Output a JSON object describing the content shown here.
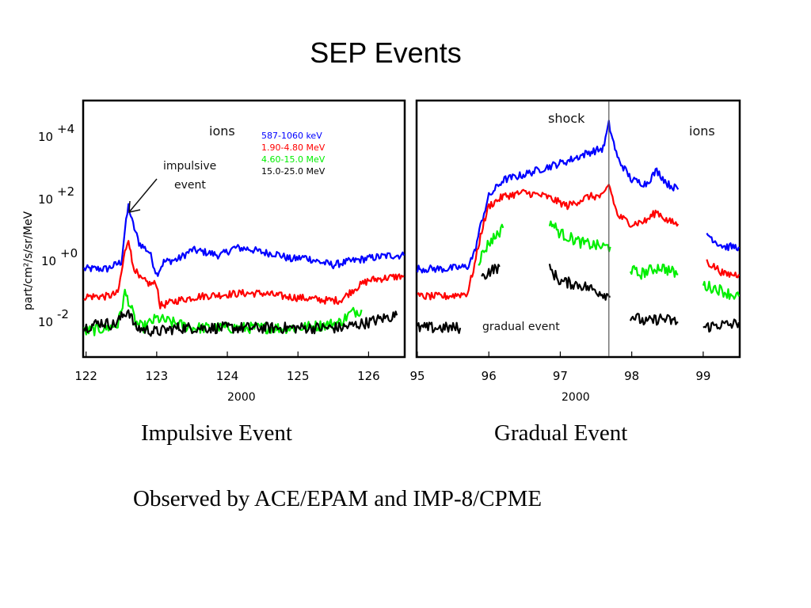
{
  "slide": {
    "title": "SEP Events",
    "caption_left": "Impulsive Event",
    "caption_right": "Gradual Event",
    "observed_by": "Observed by ACE/EPAM and IMP-8/CPME"
  },
  "chart_data": [
    {
      "type": "line",
      "title": "",
      "xlabel": "2000",
      "ylabel": "part/cm²/s/sr/MeV",
      "yscale": "log",
      "x_ticks": [
        "122",
        "123",
        "124",
        "125",
        "126"
      ],
      "y_ticks": [
        "10+4",
        "10+2",
        "100",
        "10-2"
      ],
      "xlim": [
        121.97,
        126.5
      ],
      "ylim_log10": [
        -3.3,
        4.8
      ],
      "annotation_ions": "ions",
      "annotation_event": [
        "impulsive",
        "event"
      ],
      "series": [
        {
          "name": "587-1060 keV",
          "color": "#0000ff",
          "x": [
            121.97,
            122.3,
            122.5,
            122.55,
            122.6,
            122.65,
            122.75,
            122.9,
            123.0,
            123.1,
            123.3,
            123.5,
            123.7,
            123.9,
            124.1,
            124.3,
            124.5,
            124.7,
            124.9,
            125.1,
            125.3,
            125.5,
            125.7,
            125.9,
            126.1,
            126.3,
            126.5
          ],
          "y": [
            0.3,
            0.3,
            0.5,
            5,
            30,
            10,
            2,
            1,
            0.2,
            0.5,
            0.6,
            1.2,
            1.0,
            0.8,
            1.4,
            1.3,
            1.0,
            0.9,
            0.6,
            0.7,
            0.5,
            0.4,
            0.5,
            0.6,
            0.7,
            0.8,
            0.8
          ]
        },
        {
          "name": "1.90-4.80 MeV",
          "color": "#ff0000",
          "x": [
            121.97,
            122.3,
            122.45,
            122.55,
            122.6,
            122.65,
            122.75,
            122.9,
            123.0,
            123.05,
            123.3,
            123.6,
            123.9,
            124.2,
            124.5,
            124.8,
            125.1,
            125.4,
            125.6,
            125.8,
            126.0,
            126.2,
            126.5
          ],
          "y": [
            0.04,
            0.04,
            0.05,
            1.0,
            3,
            0.5,
            0.15,
            0.1,
            0.1,
            0.02,
            0.03,
            0.04,
            0.045,
            0.05,
            0.05,
            0.04,
            0.035,
            0.03,
            0.03,
            0.07,
            0.13,
            0.15,
            0.18
          ]
        },
        {
          "name": "4.60-15.0 MeV",
          "color": "#00ee00",
          "x": [
            121.97,
            122.3,
            122.45,
            122.55,
            122.6,
            122.7,
            122.8,
            123.0,
            123.5,
            124.0,
            124.5,
            125.0,
            125.4,
            125.6,
            125.75,
            125.9
          ],
          "y": [
            0.003,
            0.004,
            0.005,
            0.05,
            0.03,
            0.006,
            0.004,
            0.008,
            0.004,
            0.004,
            0.004,
            0.004,
            0.005,
            0.006,
            0.012,
            0.015
          ]
        },
        {
          "name": "15.0-25.0 MeV",
          "color": "#000000",
          "x": [
            121.97,
            122.2,
            122.4,
            122.6,
            122.7,
            123.0,
            123.3,
            123.6,
            124.0,
            124.4,
            124.8,
            125.2,
            125.6,
            126.0,
            126.2,
            126.4
          ],
          "y": [
            0.004,
            0.006,
            0.005,
            0.015,
            0.004,
            0.003,
            0.004,
            0.004,
            0.004,
            0.004,
            0.004,
            0.004,
            0.004,
            0.006,
            0.008,
            0.01
          ]
        }
      ]
    },
    {
      "type": "line",
      "title": "",
      "xlabel": "2000",
      "ylabel": "",
      "yscale": "log",
      "x_ticks": [
        "95",
        "96",
        "97",
        "98",
        "99"
      ],
      "y_ticks": [],
      "xlim": [
        95.0,
        99.5
      ],
      "ylim_log10": [
        -3.3,
        4.8
      ],
      "annotation_ions": "ions",
      "annotation_shock": "shock",
      "annotation_gradual": "gradual event",
      "shock_x": 97.68,
      "series": [
        {
          "name": "587-1060 keV",
          "color": "#0000ff",
          "x": [
            95.0,
            95.4,
            95.7,
            95.8,
            95.9,
            96.0,
            96.2,
            96.5,
            96.8,
            97.1,
            97.4,
            97.6,
            97.68,
            97.8,
            98.0,
            98.2,
            98.35,
            98.5,
            98.65,
            null,
            99.05,
            99.2,
            99.3,
            99.5
          ],
          "y": [
            0.3,
            0.3,
            0.35,
            1.0,
            10,
            60,
            200,
            300,
            500,
            800,
            1500,
            2000,
            12000,
            1000,
            200,
            150,
            400,
            150,
            100,
            null,
            4,
            2,
            1.5,
            1.5
          ]
        },
        {
          "name": "1.90-4.80 MeV",
          "color": "#ff0000",
          "x": [
            95.0,
            95.4,
            95.7,
            95.8,
            95.9,
            96.0,
            96.2,
            96.5,
            96.8,
            97.1,
            97.4,
            97.6,
            97.68,
            97.8,
            98.0,
            98.2,
            98.35,
            98.5,
            98.65,
            null,
            99.05,
            99.2,
            99.3,
            99.5
          ],
          "y": [
            0.04,
            0.04,
            0.05,
            0.4,
            5,
            30,
            60,
            80,
            60,
            30,
            60,
            60,
            150,
            15,
            8,
            10,
            20,
            10,
            8,
            null,
            0.5,
            0.3,
            0.2,
            0.2
          ]
        },
        {
          "name": "4.60-15.0 MeV",
          "color": "#00ee00",
          "x": [
            95.85,
            96.0,
            96.2,
            null,
            96.85,
            97.0,
            97.3,
            97.6,
            97.7,
            null,
            97.98,
            98.1,
            98.4,
            98.65,
            null,
            99.0,
            99.2,
            99.35,
            99.5
          ],
          "y": [
            0.5,
            2,
            6,
            null,
            10,
            4,
            2,
            1.5,
            1.5,
            null,
            0.3,
            0.2,
            0.35,
            0.2,
            null,
            0.09,
            0.07,
            0.05,
            0.04
          ]
        },
        {
          "name": "15.0-25.0 MeV",
          "color": "#000000",
          "x": [
            95.0,
            95.4,
            95.6,
            null,
            95.9,
            96.0,
            96.15,
            null,
            96.85,
            97.0,
            97.3,
            97.6,
            97.7,
            null,
            97.98,
            98.2,
            98.4,
            98.65,
            null,
            99.0,
            99.2,
            99.4,
            99.5
          ],
          "y": [
            0.004,
            0.004,
            0.004,
            null,
            0.15,
            0.25,
            0.35,
            null,
            0.3,
            0.12,
            0.09,
            0.05,
            0.04,
            null,
            0.01,
            0.006,
            0.008,
            0.006,
            null,
            0.004,
            0.005,
            0.005,
            0.006
          ]
        }
      ]
    }
  ]
}
